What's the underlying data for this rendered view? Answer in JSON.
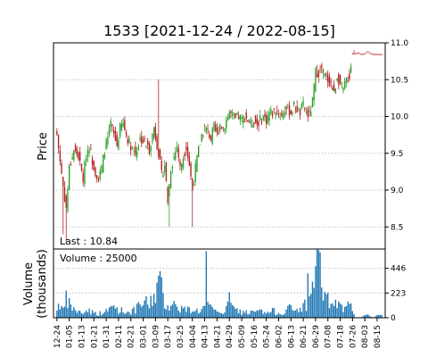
{
  "chart_data": {
    "type": "candlestick",
    "title": "1533   [2021-12-24 / 2022-08-15]",
    "colors": {
      "up": "#2ca02c",
      "down": "#b22222",
      "volume": "#1f77b4",
      "grid": "#b0b0b0"
    },
    "price_panel": {
      "ylabel": "Price",
      "ylim": [
        8.2,
        11.0
      ],
      "yticks": [
        8.5,
        9.0,
        9.5,
        10.0,
        10.5,
        11.0
      ],
      "ytick_labels": [
        "8.5",
        "9.0",
        "9.5",
        "10.0",
        "10.5",
        "11.0"
      ],
      "grid": true,
      "last_label": "Last : 10.84"
    },
    "volume_panel": {
      "ylabel": "Volume",
      "ylabel_unit": "(thousands)",
      "ylim": [
        0,
        620
      ],
      "yticks": [
        0,
        223,
        446
      ],
      "ytick_labels": [
        "0",
        "223",
        "446"
      ],
      "grid": true,
      "volume_label": "Volume : 25000"
    },
    "x_tick_labels": [
      "12-24",
      "01-05",
      "01-13",
      "01-21",
      "01-31",
      "02-11",
      "02-21",
      "03-01",
      "03-09",
      "03-17",
      "03-25",
      "04-04",
      "04-13",
      "04-21",
      "04-29",
      "05-09",
      "05-16",
      "05-24",
      "06-02",
      "06-13",
      "06-21",
      "06-29",
      "07-08",
      "07-18",
      "07-26",
      "08-03",
      "08-15"
    ],
    "x_tick_positions": [
      0,
      8,
      16,
      24,
      32,
      40,
      48,
      56,
      64,
      72,
      80,
      88,
      96,
      104,
      112,
      120,
      128,
      136,
      144,
      152,
      160,
      168,
      176,
      184,
      192,
      200,
      208
    ],
    "num_bars": 212,
    "anchors": [
      [
        0,
        9.75,
        90
      ],
      [
        2,
        9.4,
        140
      ],
      [
        4,
        9.05,
        60
      ],
      [
        6,
        8.75,
        160
      ],
      [
        8,
        9.3,
        120
      ],
      [
        11,
        9.55,
        80
      ],
      [
        14,
        9.45,
        50
      ],
      [
        17,
        9.15,
        45
      ],
      [
        19,
        9.5,
        60
      ],
      [
        21,
        9.6,
        70
      ],
      [
        23,
        9.4,
        50
      ],
      [
        25,
        9.25,
        40
      ],
      [
        27,
        9.15,
        35
      ],
      [
        29,
        9.3,
        45
      ],
      [
        31,
        9.55,
        50
      ],
      [
        33,
        9.7,
        60
      ],
      [
        35,
        9.9,
        90
      ],
      [
        37,
        9.75,
        110
      ],
      [
        39,
        9.6,
        80
      ],
      [
        41,
        9.85,
        70
      ],
      [
        43,
        9.9,
        60
      ],
      [
        45,
        9.75,
        50
      ],
      [
        48,
        9.6,
        60
      ],
      [
        51,
        9.5,
        70
      ],
      [
        54,
        9.7,
        110
      ],
      [
        57,
        9.65,
        140
      ],
      [
        60,
        9.55,
        120
      ],
      [
        63,
        9.85,
        200
      ],
      [
        66,
        9.5,
        320
      ],
      [
        68,
        9.2,
        250
      ],
      [
        70,
        9.35,
        140
      ],
      [
        72,
        8.85,
        110
      ],
      [
        74,
        9.3,
        130
      ],
      [
        76,
        9.45,
        120
      ],
      [
        78,
        9.6,
        100
      ],
      [
        80,
        9.3,
        90
      ],
      [
        82,
        9.45,
        80
      ],
      [
        84,
        9.6,
        75
      ],
      [
        86,
        9.35,
        70
      ],
      [
        88,
        9.0,
        80
      ],
      [
        90,
        9.3,
        70
      ],
      [
        92,
        9.55,
        60
      ],
      [
        94,
        9.75,
        80
      ],
      [
        96,
        9.85,
        90
      ],
      [
        98,
        9.8,
        100
      ],
      [
        100,
        9.7,
        80
      ],
      [
        102,
        9.85,
        60
      ],
      [
        104,
        9.75,
        50
      ],
      [
        106,
        9.9,
        60
      ],
      [
        108,
        9.85,
        50
      ],
      [
        110,
        9.95,
        70
      ],
      [
        112,
        10.05,
        130
      ],
      [
        114,
        10.0,
        90
      ],
      [
        116,
        9.95,
        70
      ],
      [
        118,
        10.0,
        60
      ],
      [
        120,
        9.95,
        50
      ],
      [
        122,
        10.0,
        55
      ],
      [
        124,
        9.95,
        50
      ],
      [
        126,
        9.9,
        45
      ],
      [
        128,
        9.95,
        50
      ],
      [
        130,
        9.9,
        55
      ],
      [
        132,
        9.95,
        60
      ],
      [
        134,
        10.0,
        45
      ],
      [
        136,
        9.95,
        40
      ],
      [
        138,
        10.05,
        50
      ],
      [
        140,
        10.05,
        60
      ],
      [
        142,
        10.1,
        55
      ],
      [
        144,
        10.05,
        45
      ],
      [
        146,
        10.0,
        40
      ],
      [
        148,
        10.1,
        60
      ],
      [
        150,
        10.1,
        90
      ],
      [
        152,
        10.05,
        80
      ],
      [
        154,
        10.15,
        60
      ],
      [
        156,
        10.1,
        70
      ],
      [
        158,
        10.05,
        90
      ],
      [
        160,
        10.15,
        100
      ],
      [
        162,
        10.05,
        130
      ],
      [
        164,
        10.0,
        150
      ],
      [
        166,
        10.2,
        300
      ],
      [
        168,
        10.6,
        460
      ],
      [
        170,
        10.6,
        430
      ],
      [
        172,
        10.65,
        250
      ],
      [
        174,
        10.55,
        180
      ],
      [
        176,
        10.5,
        150
      ],
      [
        178,
        10.45,
        130
      ],
      [
        180,
        10.3,
        110
      ],
      [
        182,
        10.55,
        130
      ],
      [
        184,
        10.45,
        90
      ],
      [
        186,
        10.35,
        70
      ],
      [
        188,
        10.5,
        80
      ],
      [
        190,
        10.55,
        120
      ],
      [
        192,
        10.85,
        60
      ],
      [
        194,
        10.85,
        5
      ],
      [
        196,
        10.86,
        4
      ],
      [
        198,
        10.84,
        6
      ],
      [
        200,
        10.85,
        25
      ],
      [
        202,
        10.88,
        30
      ],
      [
        204,
        10.85,
        8
      ],
      [
        206,
        10.84,
        4
      ],
      [
        208,
        10.84,
        25
      ],
      [
        211,
        10.84,
        25
      ]
    ],
    "spikes": [
      [
        4,
        8.4,
        "low"
      ],
      [
        6,
        8.3,
        "low"
      ],
      [
        66,
        10.5,
        "high"
      ],
      [
        73,
        8.5,
        "low"
      ],
      [
        88,
        8.5,
        "low"
      ],
      [
        169,
        10.7,
        "high"
      ],
      [
        193,
        10.9,
        "high"
      ]
    ],
    "volume_spikes": [
      [
        67,
        420
      ],
      [
        97,
        600
      ],
      [
        170,
        610
      ],
      [
        171,
        590
      ],
      [
        112,
        230
      ],
      [
        163,
        400
      ]
    ]
  }
}
